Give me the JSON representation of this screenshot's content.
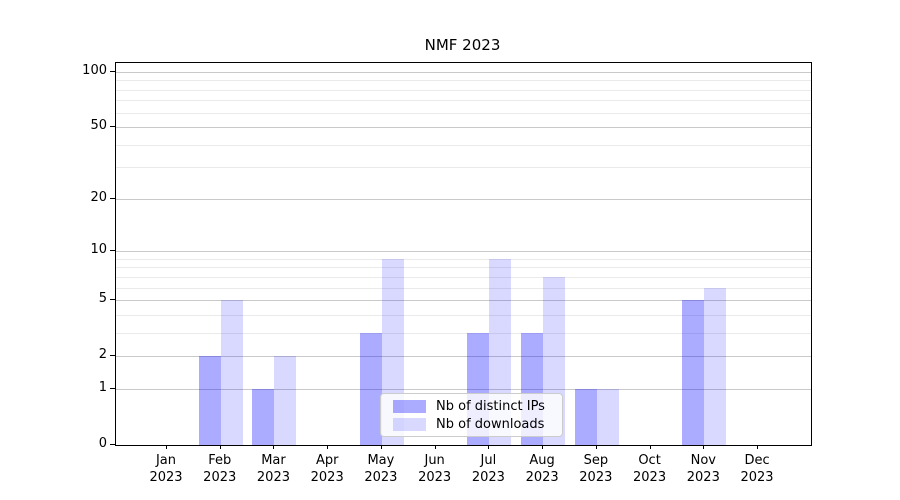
{
  "chart_data": {
    "type": "bar",
    "title": "NMF 2023",
    "categories": [
      {
        "month": "Jan",
        "year": "2023"
      },
      {
        "month": "Feb",
        "year": "2023"
      },
      {
        "month": "Mar",
        "year": "2023"
      },
      {
        "month": "Apr",
        "year": "2023"
      },
      {
        "month": "May",
        "year": "2023"
      },
      {
        "month": "Jun",
        "year": "2023"
      },
      {
        "month": "Jul",
        "year": "2023"
      },
      {
        "month": "Aug",
        "year": "2023"
      },
      {
        "month": "Sep",
        "year": "2023"
      },
      {
        "month": "Oct",
        "year": "2023"
      },
      {
        "month": "Nov",
        "year": "2023"
      },
      {
        "month": "Dec",
        "year": "2023"
      }
    ],
    "series": [
      {
        "name": "Nb of distinct IPs",
        "color": "rgba(0,0,255,0.33)",
        "values": [
          0,
          2,
          1,
          0,
          3,
          0,
          3,
          3,
          1,
          0,
          5,
          0
        ]
      },
      {
        "name": "Nb of downloads",
        "color": "rgba(0,0,255,0.15)",
        "values": [
          0,
          5,
          2,
          0,
          9,
          0,
          9,
          7,
          1,
          0,
          6,
          0
        ]
      }
    ],
    "yscale": "log1p",
    "ylim": [
      0,
      112
    ],
    "y_ticks": [
      0,
      1,
      2,
      5,
      10,
      20,
      50,
      100
    ],
    "y_minor_gridlines": [
      3,
      4,
      6,
      7,
      8,
      9,
      30,
      40,
      60,
      70,
      80,
      90
    ],
    "grid": true,
    "legend_position": "lower center",
    "colors": {
      "major_grid": "#c9c9c9",
      "minor_grid": "#eaeaea",
      "spine": "#000000",
      "text": "#000000"
    }
  }
}
